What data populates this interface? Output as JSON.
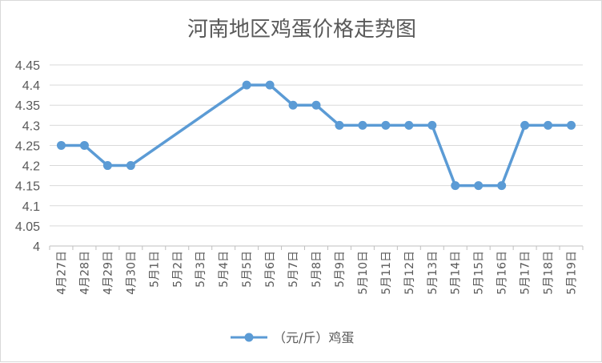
{
  "chart_data": {
    "type": "line",
    "title": "河南地区鸡蛋价格走势图",
    "categories": [
      "4月27日",
      "4月28日",
      "4月29日",
      "4月30日",
      "5月1日",
      "5月2日",
      "5月3日",
      "5月4日",
      "5月5日",
      "5月6日",
      "5月7日",
      "5月8日",
      "5月9日",
      "5月10日",
      "5月11日",
      "5月12日",
      "5月13日",
      "5月14日",
      "5月15日",
      "5月16日",
      "5月17日",
      "5月18日",
      "5月19日"
    ],
    "series": [
      {
        "name": "（元/斤）鸡蛋",
        "color": "#5b9bd5",
        "values": [
          4.25,
          4.25,
          4.2,
          4.2,
          null,
          null,
          null,
          null,
          4.4,
          4.4,
          4.35,
          4.35,
          4.3,
          4.3,
          4.3,
          4.3,
          4.3,
          4.15,
          4.15,
          4.15,
          4.3,
          4.3,
          4.3
        ]
      }
    ],
    "ylim": [
      4,
      4.45
    ],
    "yticks": [
      "4",
      "4.05",
      "4.1",
      "4.15",
      "4.2",
      "4.25",
      "4.3",
      "4.35",
      "4.4",
      "4.45"
    ],
    "grid": true,
    "gridColor": "#d9d9d9",
    "legend": "bottom"
  }
}
